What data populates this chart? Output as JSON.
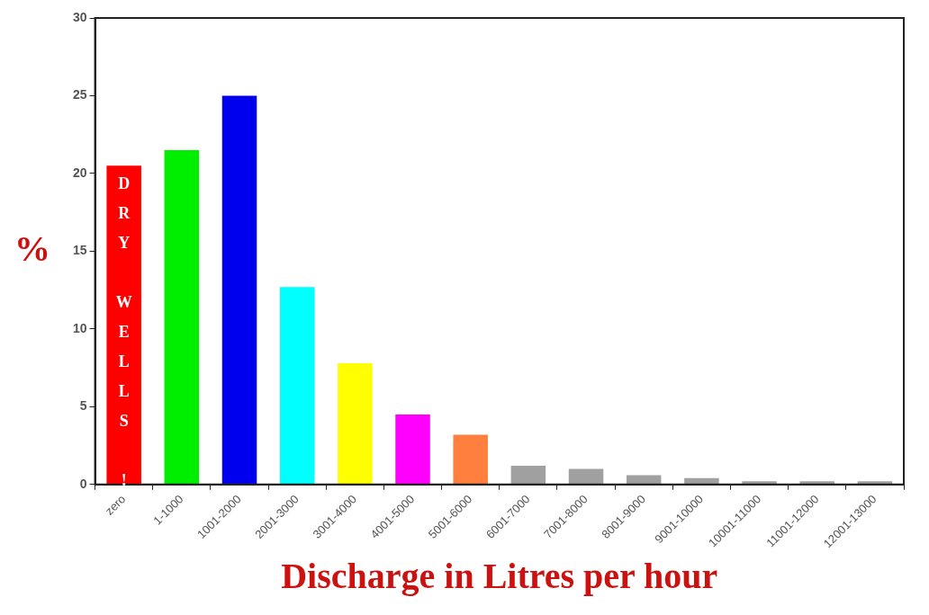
{
  "chart_data": {
    "type": "bar",
    "xlabel": "Discharge in Litres per hour",
    "ylabel": "%",
    "categories": [
      "zero",
      "1-1000",
      "1001-2000",
      "2001-3000",
      "3001-4000",
      "4001-5000",
      "5001-6000",
      "6001-7000",
      "7001-8000",
      "8001-9000",
      "9001-10000",
      "10001-11000",
      "11001-12000",
      "12001-13000"
    ],
    "values": [
      20.5,
      21.5,
      25,
      12.7,
      7.8,
      4.5,
      3.2,
      1.2,
      1.0,
      0.6,
      0.4,
      0.2,
      0.2,
      0.2
    ],
    "colors": [
      "#ff0000",
      "#00ee00",
      "#0000ee",
      "#00ffff",
      "#ffff00",
      "#ff00ff",
      "#ff7f3f",
      "#a0a0a0",
      "#a0a0a0",
      "#a0a0a0",
      "#a0a0a0",
      "#a0a0a0",
      "#a0a0a0",
      "#a0a0a0"
    ],
    "ylim": [
      0,
      30
    ],
    "yticks": [
      0,
      5,
      10,
      15,
      20,
      25,
      30
    ],
    "grid": false,
    "legend": false,
    "annotations": [
      {
        "text": "DRY WELLS !",
        "x": "zero",
        "y": 20.5
      }
    ]
  }
}
